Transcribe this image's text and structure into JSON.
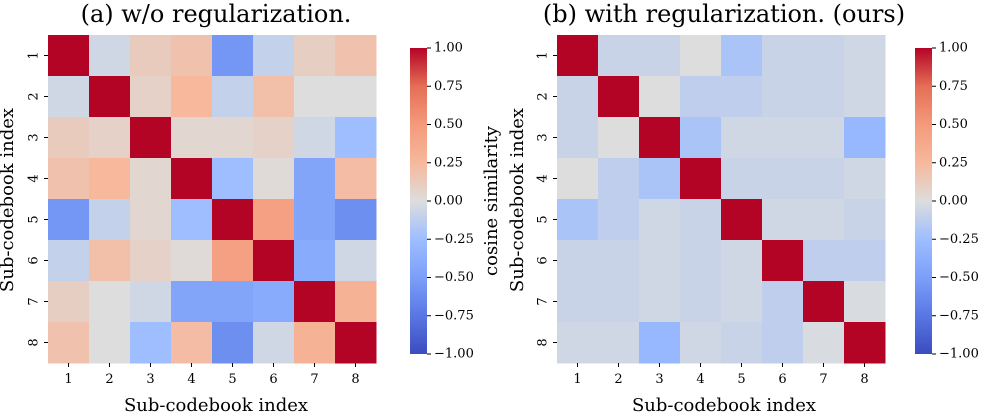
{
  "chart_data": [
    {
      "type": "heatmap",
      "title": "(a) w/o regularization.",
      "xlabel": "Sub-codebook index",
      "ylabel": "Sub-codebook index",
      "x_ticks": [
        "1",
        "2",
        "3",
        "4",
        "5",
        "6",
        "7",
        "8"
      ],
      "y_ticks": [
        "1",
        "2",
        "3",
        "4",
        "5",
        "6",
        "7",
        "8"
      ],
      "values": [
        [
          1.0,
          -0.05,
          0.12,
          0.18,
          -0.55,
          -0.1,
          0.1,
          0.18
        ],
        [
          -0.05,
          1.0,
          0.08,
          0.25,
          -0.1,
          0.2,
          0.0,
          0.0
        ],
        [
          0.12,
          0.08,
          1.0,
          0.05,
          0.05,
          0.08,
          -0.05,
          -0.25
        ],
        [
          0.18,
          0.25,
          0.05,
          1.0,
          -0.25,
          0.02,
          -0.45,
          0.22
        ],
        [
          -0.55,
          -0.1,
          0.05,
          -0.25,
          1.0,
          0.45,
          -0.45,
          -0.6
        ],
        [
          -0.1,
          0.2,
          0.08,
          0.02,
          0.45,
          1.0,
          -0.4,
          -0.05
        ],
        [
          0.1,
          0.0,
          -0.05,
          -0.45,
          -0.45,
          -0.4,
          1.0,
          0.3
        ],
        [
          0.18,
          0.0,
          -0.25,
          0.22,
          -0.6,
          -0.05,
          0.3,
          1.0
        ]
      ],
      "colorbar": {
        "label": "cosine similarity",
        "range": [
          -1.0,
          1.0
        ],
        "ticks": [
          "1.00",
          "0.75",
          "0.50",
          "0.25",
          "0.00",
          "−0.25",
          "−0.50",
          "−0.75",
          "−1.00"
        ]
      },
      "colormap": "coolwarm"
    },
    {
      "type": "heatmap",
      "title": "(b) with regularization. (ours)",
      "xlabel": "Sub-codebook index",
      "ylabel": "Sub-codebook index",
      "x_ticks": [
        "1",
        "2",
        "3",
        "4",
        "5",
        "6",
        "7",
        "8"
      ],
      "y_ticks": [
        "1",
        "2",
        "3",
        "4",
        "5",
        "6",
        "7",
        "8"
      ],
      "values": [
        [
          1.0,
          -0.08,
          -0.08,
          0.0,
          -0.2,
          -0.08,
          -0.08,
          -0.05
        ],
        [
          -0.08,
          1.0,
          0.0,
          -0.12,
          -0.12,
          -0.08,
          -0.08,
          -0.05
        ],
        [
          -0.08,
          0.0,
          1.0,
          -0.2,
          -0.05,
          -0.05,
          -0.05,
          -0.3
        ],
        [
          0.0,
          -0.12,
          -0.2,
          1.0,
          -0.08,
          -0.08,
          -0.08,
          -0.05
        ],
        [
          -0.2,
          -0.12,
          -0.05,
          -0.08,
          1.0,
          -0.05,
          -0.05,
          -0.08
        ],
        [
          -0.08,
          -0.08,
          -0.05,
          -0.08,
          -0.05,
          1.0,
          -0.12,
          -0.12
        ],
        [
          -0.08,
          -0.08,
          -0.05,
          -0.08,
          -0.05,
          -0.12,
          1.0,
          -0.02
        ],
        [
          -0.05,
          -0.05,
          -0.3,
          -0.05,
          -0.08,
          -0.12,
          -0.02,
          1.0
        ]
      ],
      "colorbar": {
        "label": "cosine similarity",
        "range": [
          -1.0,
          1.0
        ],
        "ticks": [
          "1.00",
          "0.75",
          "0.50",
          "0.25",
          "0.00",
          "−0.25",
          "−0.50",
          "−0.75",
          "−1.00"
        ]
      },
      "colormap": "coolwarm"
    }
  ]
}
